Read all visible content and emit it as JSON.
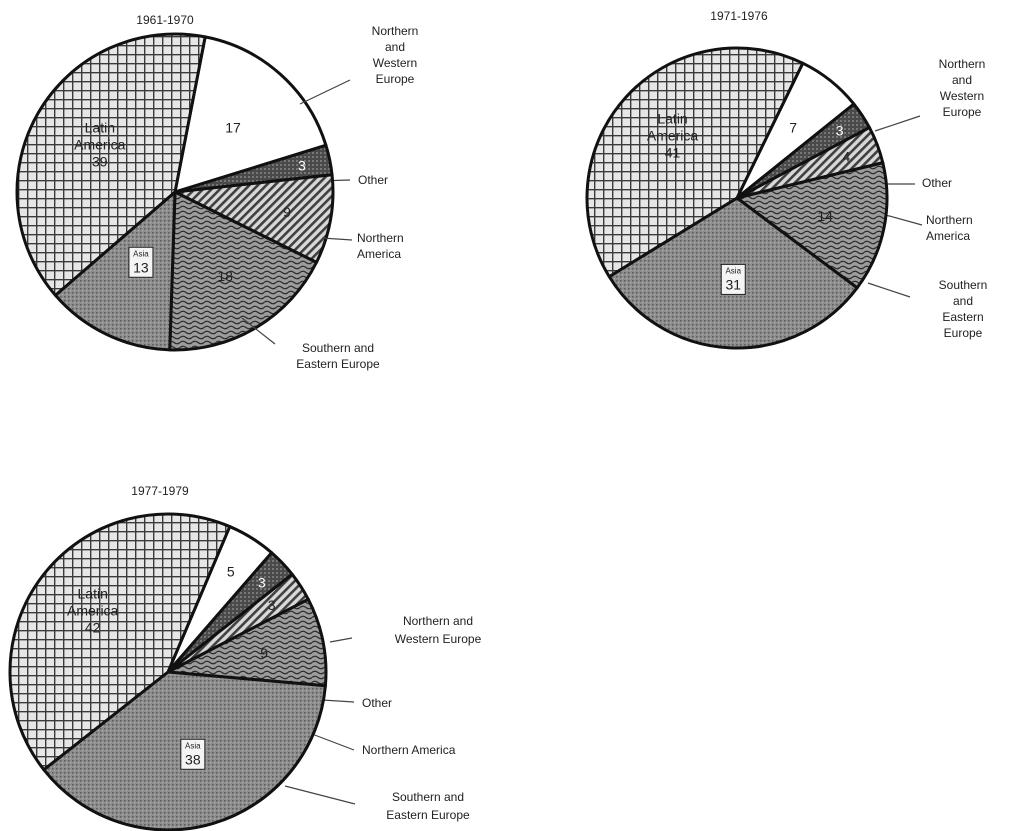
{
  "chart_data": [
    {
      "type": "pie",
      "title": "1961-1970",
      "slices": [
        {
          "category": "Northern and Western Europe",
          "label": "Northern|and|Western|Europe",
          "value": 17,
          "shown": "17",
          "pattern": "white"
        },
        {
          "category": "Other",
          "label": "Other",
          "value": 3,
          "shown": "3",
          "pattern": "dark"
        },
        {
          "category": "Northern America",
          "label": "Northern|America",
          "value": 9,
          "shown": "9",
          "pattern": "diag"
        },
        {
          "category": "Southern and Eastern Europe",
          "label": "Southern and|Eastern Europe",
          "value": 18,
          "shown": "18",
          "pattern": "wave"
        },
        {
          "category": "Asia",
          "label": "",
          "value": 13,
          "shown": "13",
          "pattern": "dots",
          "inner": "Asia"
        },
        {
          "category": "Latin America",
          "label": "",
          "value": 39,
          "shown": "39",
          "pattern": "cross",
          "inner": "Latin|America|39"
        }
      ]
    },
    {
      "type": "pie",
      "title": "1971-1976",
      "slices": [
        {
          "category": "Northern and Western Europe",
          "label": "Northern|and|Western|Europe",
          "value": 7,
          "shown": "7",
          "pattern": "white"
        },
        {
          "category": "Other",
          "label": "Other",
          "value": 3,
          "shown": "3",
          "pattern": "dark"
        },
        {
          "category": "Northern America",
          "label": "Northern|America",
          "value": 4,
          "shown": "4",
          "pattern": "diag"
        },
        {
          "category": "Southern and Eastern Europe",
          "label": "Southern|and|Eastern|Europe",
          "value": 14,
          "shown": "14",
          "pattern": "wave"
        },
        {
          "category": "Asia",
          "label": "",
          "value": 31,
          "shown": "31",
          "pattern": "dots",
          "inner": "Asia"
        },
        {
          "category": "Latin America",
          "label": "",
          "value": 41,
          "shown": "41",
          "pattern": "cross",
          "inner": "Latin|America|41"
        }
      ]
    },
    {
      "type": "pie",
      "title": "1977-1979",
      "slices": [
        {
          "category": "Northern and Western Europe",
          "label": "Northern and|Western Europe",
          "value": 5,
          "shown": "5",
          "pattern": "white"
        },
        {
          "category": "Other",
          "label": "Other",
          "value": 3,
          "shown": "3",
          "pattern": "dark"
        },
        {
          "category": "Northern America",
          "label": "Northern America",
          "value": 3,
          "shown": "3",
          "pattern": "diag"
        },
        {
          "category": "Southern and Eastern Europe",
          "label": "Southern and|Eastern Europe",
          "value": 9,
          "shown": "9",
          "pattern": "wave"
        },
        {
          "category": "Asia",
          "label": "",
          "value": 38,
          "shown": "38",
          "pattern": "dots",
          "inner": "Asia"
        },
        {
          "category": "Latin America",
          "label": "",
          "value": 42,
          "shown": "42",
          "pattern": "cross",
          "inner": "Latin|America|42"
        }
      ]
    }
  ]
}
